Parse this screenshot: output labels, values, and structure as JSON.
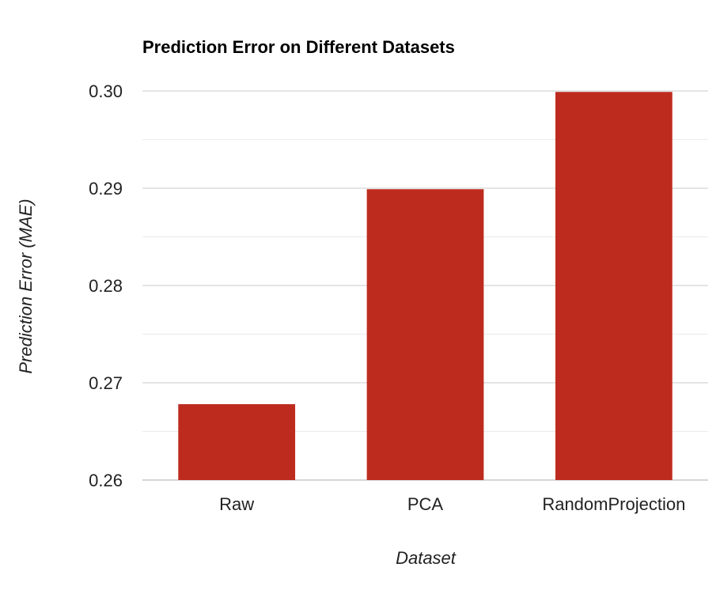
{
  "chart_data": {
    "type": "bar",
    "title": "Prediction Error on Different Datasets",
    "xlabel": "Dataset",
    "ylabel": "Prediction Error (MAE)",
    "categories": [
      "Raw",
      "PCA",
      "RandomProjection"
    ],
    "values": [
      0.2678,
      0.2899,
      0.2999
    ],
    "ylim": [
      0.26,
      0.3
    ],
    "yticks": [
      "0.26",
      "0.27",
      "0.28",
      "0.29",
      "0.30"
    ],
    "grid": true,
    "legend": "none",
    "colors": {
      "bar": "#bd2b1f",
      "major_grid": "#c8c8c8",
      "minor_grid": "#ebebeb",
      "text": "#222222",
      "title": "#000000"
    }
  }
}
